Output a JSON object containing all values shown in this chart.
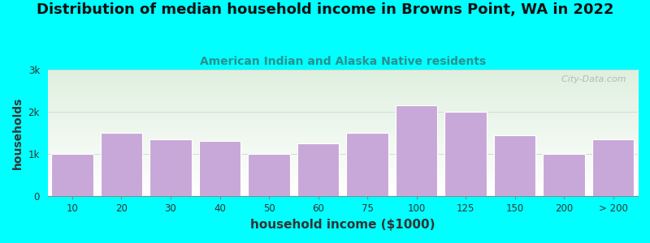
{
  "title": "Distribution of median household income in Browns Point, WA in 2022",
  "subtitle": "American Indian and Alaska Native residents",
  "xlabel": "household income ($1000)",
  "ylabel": "households",
  "background_color": "#00FFFF",
  "plot_bg_top": "#dff0df",
  "plot_bg_bottom": "#ffffff",
  "bar_color": "#C8A8D8",
  "bar_edge_color": "#ffffff",
  "title_fontsize": 13,
  "subtitle_fontsize": 10,
  "subtitle_color": "#2a9090",
  "categories": [
    "10",
    "20",
    "30",
    "40",
    "50",
    "60",
    "75",
    "100",
    "125",
    "150",
    "200",
    "> 200"
  ],
  "values": [
    1000,
    1500,
    1350,
    1300,
    1000,
    1250,
    1500,
    2150,
    2000,
    1450,
    1000,
    1350
  ],
  "ylim": [
    0,
    3000
  ],
  "yticks": [
    0,
    1000,
    2000,
    3000
  ],
  "ytick_labels": [
    "0",
    "1k",
    "2k",
    "3k"
  ],
  "watermark": "  City-Data.com",
  "xlabel_fontsize": 11,
  "ylabel_fontsize": 10
}
